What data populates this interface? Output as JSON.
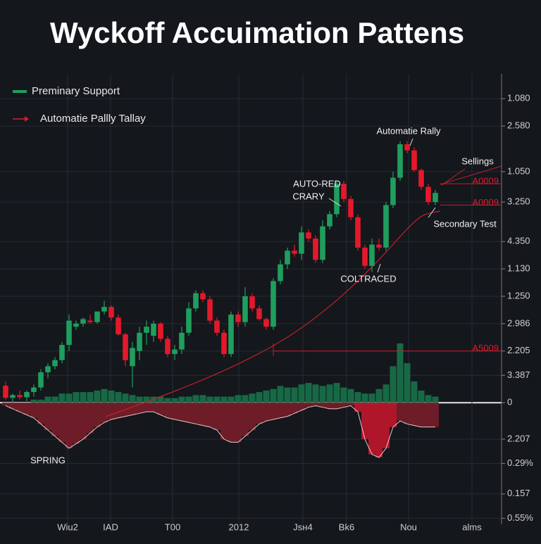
{
  "chart_data": {
    "type": "candlestick",
    "title": "Wyckoff Accuimation Pattens",
    "up_color": "#1f9e5e",
    "down_color": "#e3192b",
    "legend": [
      {
        "name": "Preminary Support",
        "color": "#1f9e5e"
      },
      {
        "name": "Automatie Pallly Tallay",
        "color": "#e3192b"
      }
    ],
    "xlim": [
      -0.8,
      70.4
    ],
    "xticks": [
      {
        "value": 8.8,
        "label": "Wiu2"
      },
      {
        "value": 14.9,
        "label": "IAD"
      },
      {
        "value": 23.7,
        "label": "T00"
      },
      {
        "value": 33.1,
        "label": "2012"
      },
      {
        "value": 42.2,
        "label": "Jsн4"
      },
      {
        "value": 48.4,
        "label": "Bk6"
      },
      {
        "value": 57.2,
        "label": "Nou"
      },
      {
        "value": 66.2,
        "label": "alms"
      }
    ],
    "ylim": [
      -40,
      110
    ],
    "yticks": [
      {
        "value": 100,
        "label": "1.080"
      },
      {
        "value": 91,
        "label": "2.580"
      },
      {
        "value": 76,
        "label": "1.050"
      },
      {
        "value": 66,
        "label": "3.250"
      },
      {
        "value": 53,
        "label": "4.350"
      },
      {
        "value": 44,
        "label": "1.130"
      },
      {
        "value": 35,
        "label": "1.250"
      },
      {
        "value": 26,
        "label": "2.986"
      },
      {
        "value": 17,
        "label": "2.205"
      },
      {
        "value": 9,
        "label": "3.387"
      },
      0,
      {
        "value": -12,
        "label": "2.207"
      },
      {
        "value": -20,
        "label": "0.29%"
      },
      {
        "value": -30,
        "label": "0.157"
      },
      {
        "value": -38,
        "label": "0.55%"
      }
    ],
    "grid": true,
    "open": [
      5.6,
      1.6,
      2.5,
      1.8,
      3.5,
      5,
      10,
      12,
      14,
      19,
      25,
      26,
      27,
      26.5,
      30,
      31.5,
      28,
      22.5,
      12,
      17,
      23,
      22,
      26,
      21,
      16,
      17.5,
      23,
      31,
      36,
      34,
      27,
      23,
      16,
      29,
      26.5,
      35,
      31,
      27.5,
      25,
      40,
      45.5,
      50,
      49,
      56,
      54,
      47,
      58,
      62,
      72,
      67,
      61,
      51,
      45,
      52,
      51,
      65,
      74,
      85,
      83,
      76.5,
      71,
      66
    ],
    "high": [
      7,
      3,
      4,
      4,
      6,
      11,
      13,
      15,
      20,
      29,
      27,
      28,
      29,
      30,
      33.5,
      32,
      29,
      23,
      20,
      25,
      27,
      27,
      26.5,
      22,
      19,
      25,
      33,
      37,
      37,
      35,
      28,
      24,
      30,
      30,
      38,
      36,
      32,
      28,
      41,
      47,
      51,
      52,
      58,
      57,
      55,
      60,
      63,
      73,
      73,
      68,
      62,
      52,
      54,
      54,
      66,
      76,
      86,
      86,
      84,
      77,
      72,
      70
    ],
    "low": [
      1,
      0,
      1,
      0.5,
      2,
      4,
      8,
      11,
      13,
      17,
      24,
      25,
      26,
      26,
      29,
      27,
      22,
      12,
      5,
      14,
      19,
      20,
      20,
      15,
      14,
      16,
      22,
      30,
      33,
      26,
      22,
      15,
      15,
      25,
      25,
      30,
      27,
      24,
      24,
      39,
      44,
      48,
      47,
      53,
      46,
      46,
      57,
      61,
      66,
      60,
      50,
      44,
      43,
      50,
      50,
      64,
      73,
      82,
      76,
      70,
      65,
      65
    ],
    "close": [
      1.6,
      2.5,
      1.8,
      3.5,
      5,
      10,
      12,
      14,
      19,
      27,
      26,
      27.5,
      26.5,
      30,
      31.5,
      28,
      22.5,
      14,
      18,
      23,
      25,
      26,
      21,
      16,
      17.5,
      23,
      31,
      36,
      34,
      27,
      23,
      16,
      29,
      26.5,
      35,
      31,
      27.5,
      25,
      40,
      45.5,
      50,
      49,
      56,
      54,
      47,
      58,
      62,
      72,
      67,
      61,
      51,
      45,
      52,
      51,
      65,
      74,
      85,
      83,
      76.5,
      71,
      66,
      69
    ],
    "volume": [
      0,
      0,
      0,
      0,
      1,
      1,
      2,
      2,
      3,
      3,
      3.5,
      3.5,
      3.5,
      4,
      4.5,
      4,
      3.5,
      3,
      2.5,
      2,
      2,
      2,
      2,
      1.5,
      1.5,
      2,
      2,
      2.5,
      2.5,
      2,
      2,
      2,
      2,
      2.5,
      2.5,
      3,
      3.5,
      4,
      4.5,
      5.5,
      5,
      5,
      6,
      6.5,
      6,
      5.5,
      6,
      6.5,
      5,
      4.5,
      3.5,
      3,
      3,
      4.5,
      6,
      12,
      19.5,
      13,
      7,
      4,
      2.5,
      2
    ],
    "histogram": [
      -1,
      -2,
      -3,
      -4,
      -5,
      -7,
      -9,
      -11,
      -13,
      -15,
      -13.5,
      -12,
      -10,
      -8,
      -6.5,
      -5.5,
      -5,
      -4.5,
      -4,
      -3.5,
      -3,
      -3,
      -4,
      -5,
      -5.5,
      -6,
      -6.5,
      -7,
      -7.5,
      -8,
      -9,
      -12,
      -13,
      -13,
      -11,
      -9,
      -7,
      -6,
      -5.5,
      -5,
      -4.5,
      -3.5,
      -2.5,
      -1.5,
      -1,
      -1.5,
      -2,
      -2,
      -1.5,
      -1,
      -3,
      -12,
      -17,
      -18,
      -15,
      -8,
      -6,
      -7,
      -7.5,
      -8,
      -8,
      -8
    ],
    "levels": [
      {
        "value": 72,
        "label": "A0009"
      },
      {
        "value": 65,
        "label": "A0009"
      },
      {
        "value": 17,
        "label": "A5009"
      }
    ],
    "annotations": [
      "Automatie Rally",
      "Sellings",
      "AUTO-RED",
      "CRARY",
      "Secondary Test",
      "COLTRACED",
      "SPRING"
    ]
  }
}
